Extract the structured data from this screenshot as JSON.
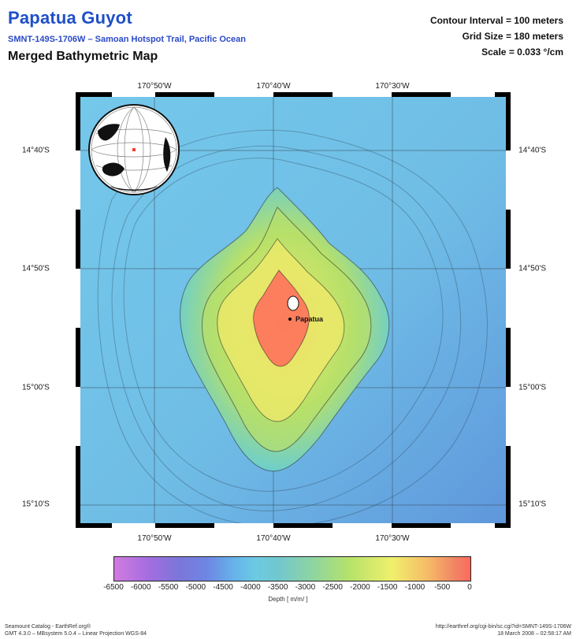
{
  "header": {
    "title": "Papatua Guyot",
    "subtitle": "SMNT-149S-1706W – Samoan Hotspot Trail, Pacific Ocean",
    "map_kind": "Merged Bathymetric Map",
    "meta": {
      "contour_interval": "Contour Interval = 100 meters",
      "grid_size": "Grid Size = 180 meters",
      "scale": "Scale = 0.033 °/cm"
    }
  },
  "map": {
    "top_lon_labels": [
      "170°50'W",
      "170°40'W",
      "170°30'W"
    ],
    "bottom_lon_labels": [
      "170°50'W",
      "170°40'W",
      "170°30'W"
    ],
    "left_lat_labels": [
      "14°40'S",
      "14°50'S",
      "15°00'S",
      "15°10'S"
    ],
    "right_lat_labels": [
      "14°40'S",
      "14°50'S",
      "15°00'S",
      "15°10'S"
    ],
    "seamount_label": "Papatua"
  },
  "colorbar": {
    "ticks": [
      "-6500",
      "-6000",
      "-5500",
      "-5000",
      "-4500",
      "-4000",
      "-3500",
      "-3000",
      "-2500",
      "-2000",
      "-1500",
      "-1000",
      "-500",
      "0"
    ],
    "label": "Depth [ m/m/ ]",
    "colors": [
      "#d27adf",
      "#a26de0",
      "#7c76d9",
      "#6e86e3",
      "#66b5ea",
      "#6ccbe1",
      "#72c7cf",
      "#8fd5a0",
      "#b6e26a",
      "#eff06c",
      "#f6bb67",
      "#f08264",
      "#ff6a5a"
    ]
  },
  "footer": {
    "left_line1": "Seamount Catalog - EarthRef.org®",
    "left_line2": "GMT 4.3.0 – MBsystem 5.0.4 – Linear Projection WGS-84",
    "right_line1": "http://earthref.org/cgi-bin/sc.cgi?id=SMNT-149S-1706W",
    "right_line2": "18 March 2008 – 02:58:17 AM"
  }
}
